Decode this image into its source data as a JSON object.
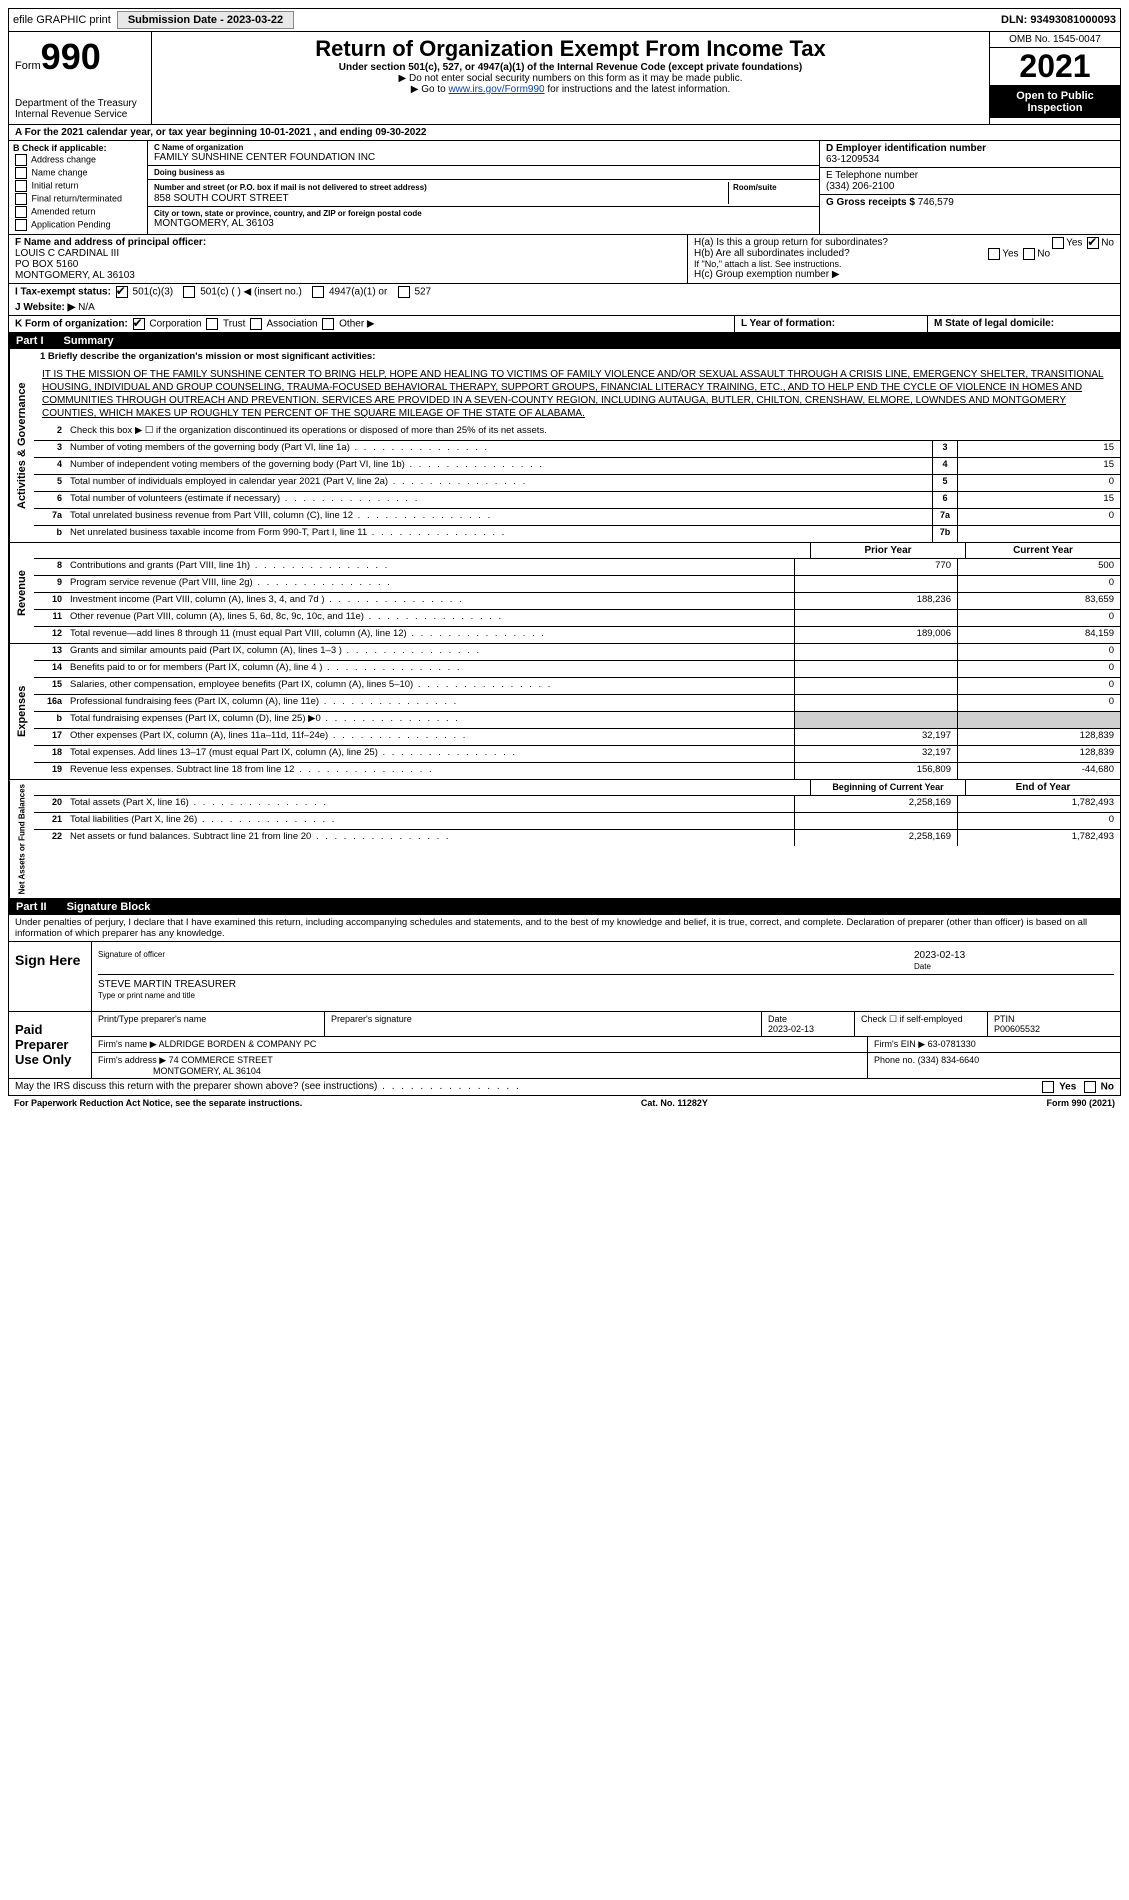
{
  "meta": {
    "dln": "DLN: 93493081000093",
    "submission_label": "Submission Date - 2023-03-22",
    "efile": "efile GRAPHIC print",
    "omb": "OMB No. 1545-0047",
    "form_label": "Form",
    "form_number": "990",
    "tax_year": "2021",
    "dept": "Department of the Treasury",
    "irs": "Internal Revenue Service",
    "title": "Return of Organization Exempt From Income Tax",
    "subtitle": "Under section 501(c), 527, or 4947(a)(1) of the Internal Revenue Code (except private foundations)",
    "note1": "▶ Do not enter social security numbers on this form as it may be made public.",
    "note2_pre": "▶ Go to ",
    "note2_link": "www.irs.gov/Form990",
    "note2_post": " for instructions and the latest information.",
    "inspection": "Open to Public Inspection",
    "footer_paperwork": "For Paperwork Reduction Act Notice, see the separate instructions.",
    "footer_cat": "Cat. No. 11282Y",
    "footer_form": "Form 990 (2021)"
  },
  "line_a": "A For the 2021 calendar year, or tax year beginning 10-01-2021  , and ending 09-30-2022",
  "section_b": {
    "header": "B Check if applicable:",
    "items": [
      "Address change",
      "Name change",
      "Initial return",
      "Final return/terminated",
      "Amended return",
      "Application Pending"
    ]
  },
  "section_c": {
    "name_label": "C Name of organization",
    "name": "FAMILY SUNSHINE CENTER FOUNDATION INC",
    "dba_label": "Doing business as",
    "dba": "",
    "addr_label": "Number and street (or P.O. box if mail is not delivered to street address)",
    "addr": "858 SOUTH COURT STREET",
    "room_label": "Room/suite",
    "city_label": "City or town, state or province, country, and ZIP or foreign postal code",
    "city": "MONTGOMERY, AL  36103"
  },
  "section_d": {
    "label": "D Employer identification number",
    "value": "63-1209534"
  },
  "section_e": {
    "label": "E Telephone number",
    "value": "(334) 206-2100"
  },
  "section_g": {
    "label": "G Gross receipts $",
    "value": "746,579"
  },
  "section_f": {
    "label": "F Name and address of principal officer:",
    "name": "LOUIS C CARDINAL III",
    "po": "PO BOX 5160",
    "city": "MONTGOMERY, AL  36103"
  },
  "section_h": {
    "ha_label": "H(a)  Is this a group return for subordinates?",
    "hb_label": "H(b)  Are all subordinates included?",
    "hb_note": "If \"No,\" attach a list. See instructions.",
    "hc_label": "H(c)  Group exemption number ▶",
    "yes": "Yes",
    "no": "No"
  },
  "section_i": {
    "label": "I  Tax-exempt status:",
    "opts": [
      "501(c)(3)",
      "501(c) (  ) ◀ (insert no.)",
      "4947(a)(1) or",
      "527"
    ]
  },
  "section_j": {
    "label": "J  Website: ▶",
    "value": "N/A"
  },
  "section_k": {
    "label": "K Form of organization:",
    "opts": [
      "Corporation",
      "Trust",
      "Association",
      "Other ▶"
    ]
  },
  "section_l": {
    "label": "L Year of formation:",
    "value": ""
  },
  "section_m": {
    "label": "M State of legal domicile:",
    "value": ""
  },
  "part1": {
    "header": "Part I",
    "title": "Summary",
    "mission_label": "1  Briefly describe the organization's mission or most significant activities:",
    "mission": "IT IS THE MISSION OF THE FAMILY SUNSHINE CENTER TO BRING HELP, HOPE AND HEALING TO VICTIMS OF FAMILY VIOLENCE AND/OR SEXUAL ASSAULT THROUGH A CRISIS LINE, EMERGENCY SHELTER, TRANSITIONAL HOUSING, INDIVIDUAL AND GROUP COUNSELING, TRAUMA-FOCUSED BEHAVIORAL THERAPY, SUPPORT GROUPS, FINANCIAL LITERACY TRAINING, ETC., AND TO HELP END THE CYCLE OF VIOLENCE IN HOMES AND COMMUNITIES THROUGH OUTREACH AND PREVENTION. SERVICES ARE PROVIDED IN A SEVEN-COUNTY REGION, INCLUDING AUTAUGA, BUTLER, CHILTON, CRENSHAW, ELMORE, LOWNDES AND MONTGOMERY COUNTIES, WHICH MAKES UP ROUGHLY TEN PERCENT OF THE SQUARE MILEAGE OF THE STATE OF ALABAMA.",
    "line2": "Check this box ▶ ☐ if the organization discontinued its operations or disposed of more than 25% of its net assets.",
    "gov_lines": [
      {
        "n": "3",
        "d": "Number of voting members of the governing body (Part VI, line 1a)",
        "box": "3",
        "v": "15"
      },
      {
        "n": "4",
        "d": "Number of independent voting members of the governing body (Part VI, line 1b)",
        "box": "4",
        "v": "15"
      },
      {
        "n": "5",
        "d": "Total number of individuals employed in calendar year 2021 (Part V, line 2a)",
        "box": "5",
        "v": "0"
      },
      {
        "n": "6",
        "d": "Total number of volunteers (estimate if necessary)",
        "box": "6",
        "v": "15"
      },
      {
        "n": "7a",
        "d": "Total unrelated business revenue from Part VIII, column (C), line 12",
        "box": "7a",
        "v": "0"
      },
      {
        "n": "b",
        "d": "Net unrelated business taxable income from Form 990-T, Part I, line 11",
        "box": "7b",
        "v": ""
      }
    ],
    "col_prior": "Prior Year",
    "col_current": "Current Year",
    "rev_lines": [
      {
        "n": "8",
        "d": "Contributions and grants (Part VIII, line 1h)",
        "p": "770",
        "c": "500"
      },
      {
        "n": "9",
        "d": "Program service revenue (Part VIII, line 2g)",
        "p": "",
        "c": "0"
      },
      {
        "n": "10",
        "d": "Investment income (Part VIII, column (A), lines 3, 4, and 7d )",
        "p": "188,236",
        "c": "83,659"
      },
      {
        "n": "11",
        "d": "Other revenue (Part VIII, column (A), lines 5, 6d, 8c, 9c, 10c, and 11e)",
        "p": "",
        "c": "0"
      },
      {
        "n": "12",
        "d": "Total revenue—add lines 8 through 11 (must equal Part VIII, column (A), line 12)",
        "p": "189,006",
        "c": "84,159"
      }
    ],
    "exp_lines": [
      {
        "n": "13",
        "d": "Grants and similar amounts paid (Part IX, column (A), lines 1–3 )",
        "p": "",
        "c": "0"
      },
      {
        "n": "14",
        "d": "Benefits paid to or for members (Part IX, column (A), line 4 )",
        "p": "",
        "c": "0"
      },
      {
        "n": "15",
        "d": "Salaries, other compensation, employee benefits (Part IX, column (A), lines 5–10)",
        "p": "",
        "c": "0"
      },
      {
        "n": "16a",
        "d": "Professional fundraising fees (Part IX, column (A), line 11e)",
        "p": "",
        "c": "0"
      },
      {
        "n": "b",
        "d": "Total fundraising expenses (Part IX, column (D), line 25) ▶0",
        "p": "shade",
        "c": "shade"
      },
      {
        "n": "17",
        "d": "Other expenses (Part IX, column (A), lines 11a–11d, 11f–24e)",
        "p": "32,197",
        "c": "128,839"
      },
      {
        "n": "18",
        "d": "Total expenses. Add lines 13–17 (must equal Part IX, column (A), line 25)",
        "p": "32,197",
        "c": "128,839"
      },
      {
        "n": "19",
        "d": "Revenue less expenses. Subtract line 18 from line 12",
        "p": "156,809",
        "c": "-44,680"
      }
    ],
    "col_begin": "Beginning of Current Year",
    "col_end": "End of Year",
    "net_lines": [
      {
        "n": "20",
        "d": "Total assets (Part X, line 16)",
        "p": "2,258,169",
        "c": "1,782,493"
      },
      {
        "n": "21",
        "d": "Total liabilities (Part X, line 26)",
        "p": "",
        "c": "0"
      },
      {
        "n": "22",
        "d": "Net assets or fund balances. Subtract line 21 from line 20",
        "p": "2,258,169",
        "c": "1,782,493"
      }
    ],
    "side_gov": "Activities & Governance",
    "side_rev": "Revenue",
    "side_exp": "Expenses",
    "side_net": "Net Assets or Fund Balances"
  },
  "part2": {
    "header": "Part II",
    "title": "Signature Block",
    "intro": "Under penalties of perjury, I declare that I have examined this return, including accompanying schedules and statements, and to the best of my knowledge and belief, it is true, correct, and complete. Declaration of preparer (other than officer) is based on all information of which preparer has any knowledge.",
    "sign_here": "Sign Here",
    "sig_officer": "Signature of officer",
    "sig_date_label": "Date",
    "sig_date": "2023-02-13",
    "officer_name": "STEVE MARTIN  TREASURER",
    "officer_caption": "Type or print name and title",
    "paid_label": "Paid Preparer Use Only",
    "prep_name_label": "Print/Type preparer's name",
    "prep_sig_label": "Preparer's signature",
    "prep_date_label": "Date",
    "prep_date": "2023-02-13",
    "prep_check": "Check ☐ if self-employed",
    "ptin_label": "PTIN",
    "ptin": "P00605532",
    "firm_name_label": "Firm's name    ▶",
    "firm_name": "ALDRIDGE BORDEN & COMPANY PC",
    "firm_ein_label": "Firm's EIN ▶",
    "firm_ein": "63-0781330",
    "firm_addr_label": "Firm's address ▶",
    "firm_addr": "74 COMMERCE STREET",
    "firm_city": "MONTGOMERY, AL  36104",
    "firm_phone_label": "Phone no.",
    "firm_phone": "(334) 834-6640",
    "discuss": "May the IRS discuss this return with the preparer shown above? (see instructions)"
  }
}
